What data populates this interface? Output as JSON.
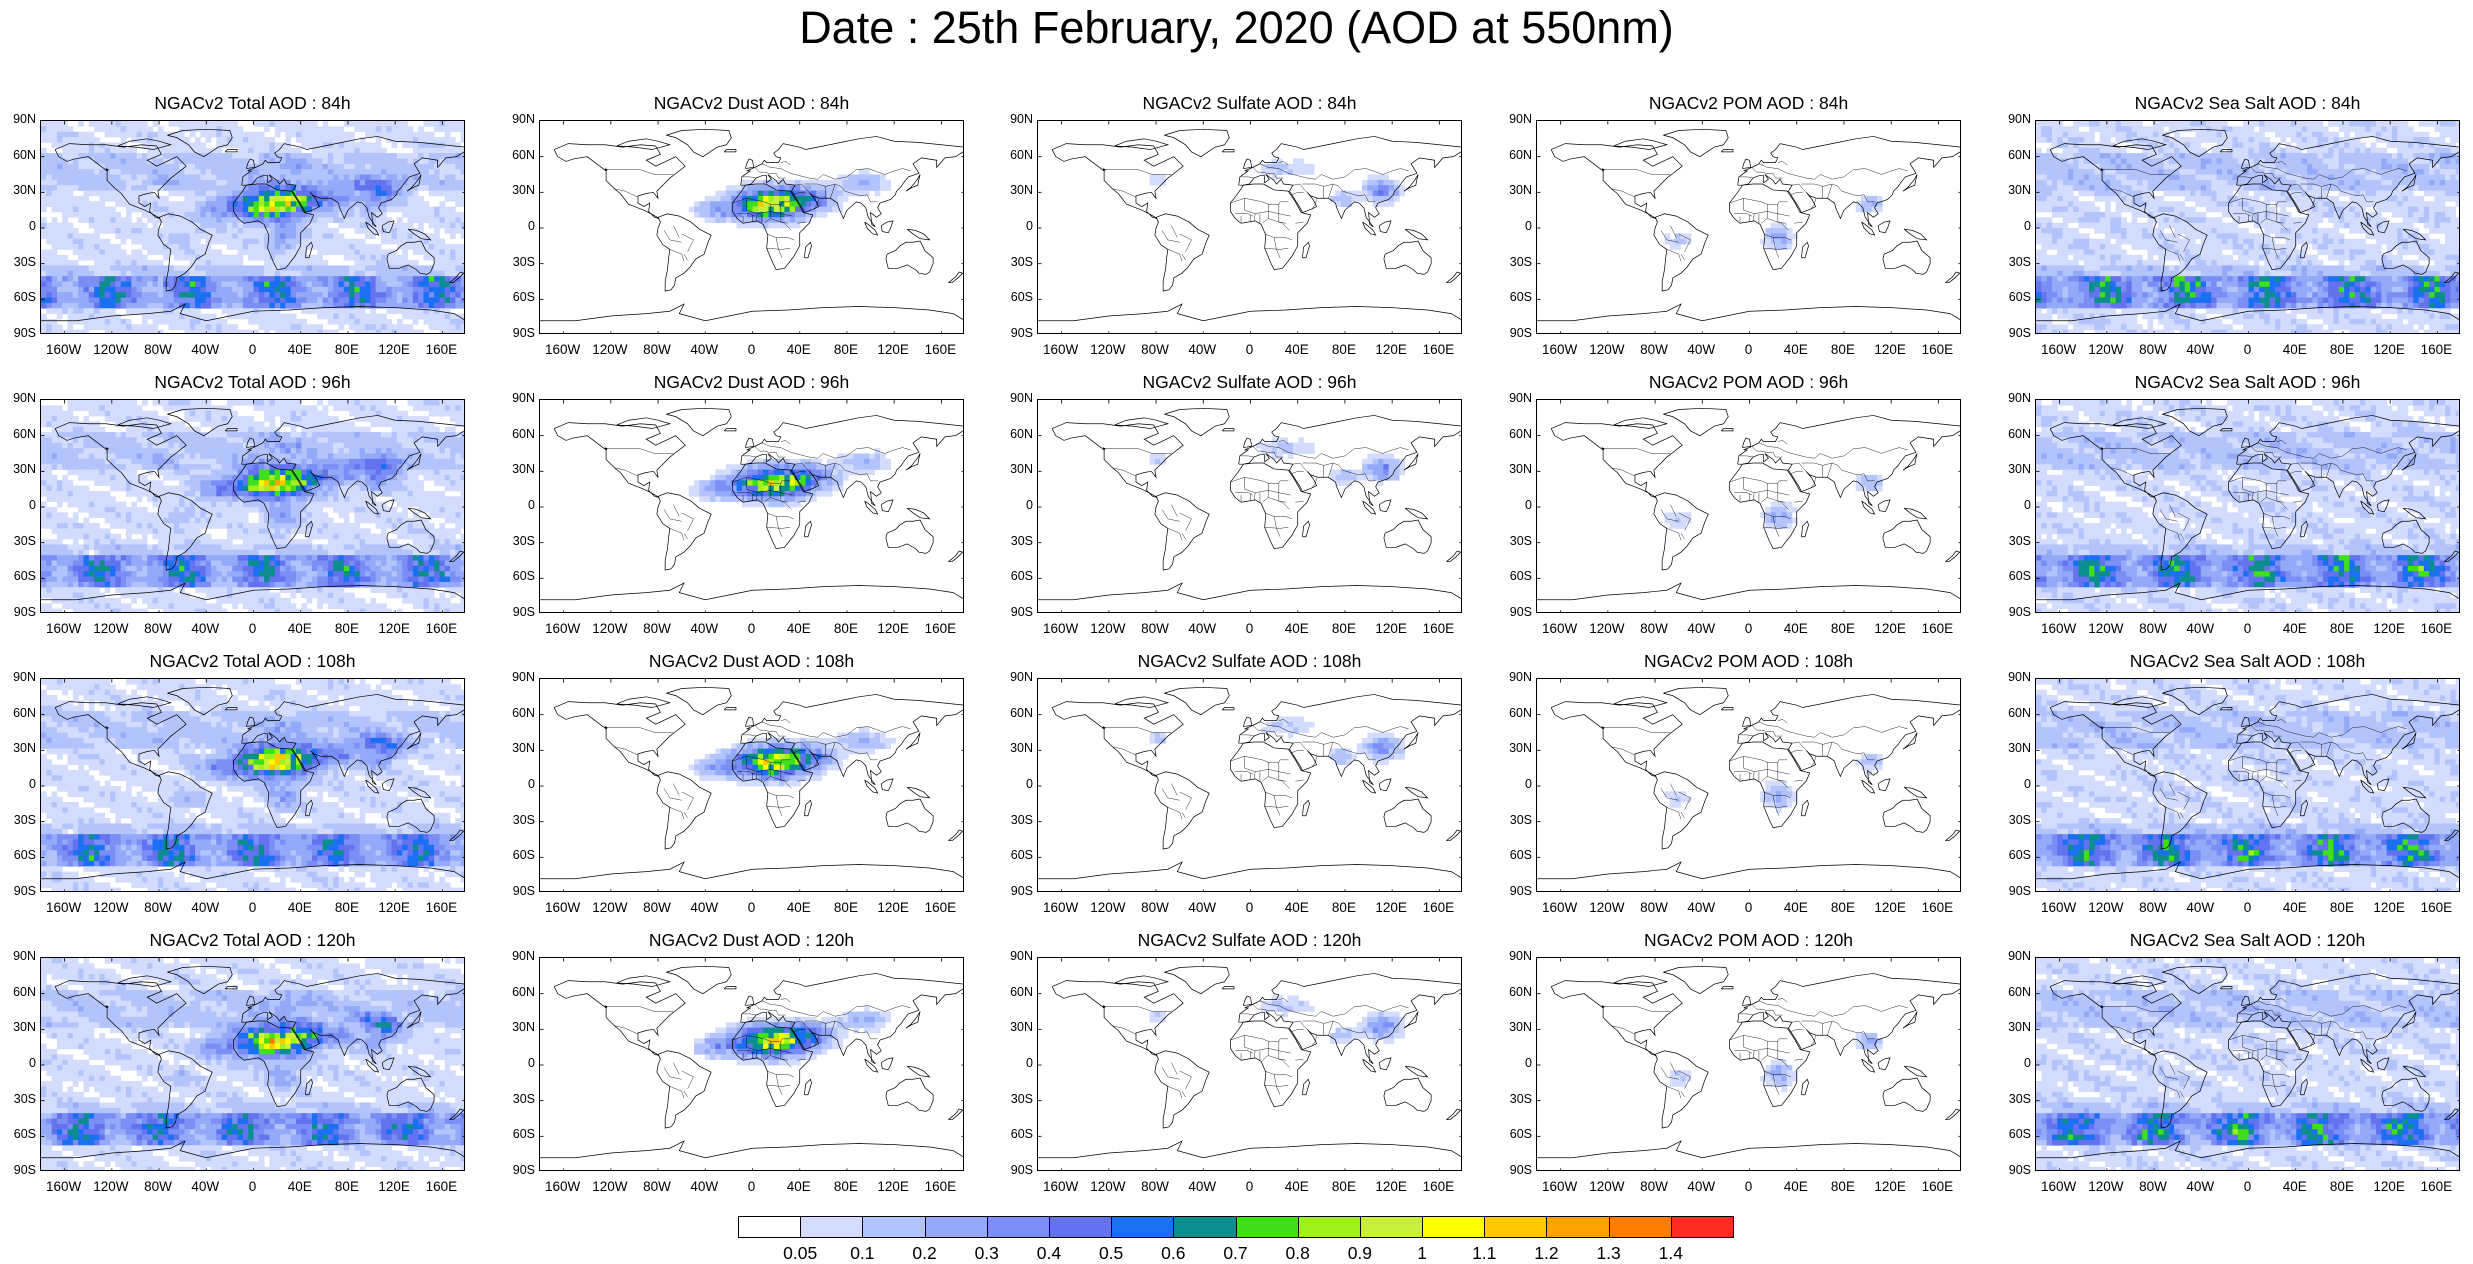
{
  "title": "Date : 25th February, 2020 (AOD at 550nm)",
  "species": [
    {
      "key": "total",
      "label": "Total"
    },
    {
      "key": "dust",
      "label": "Dust"
    },
    {
      "key": "sulfate",
      "label": "Sulfate"
    },
    {
      "key": "pom",
      "label": "POM"
    },
    {
      "key": "seasalt",
      "label": "Sea Salt"
    }
  ],
  "panels": [
    [
      "NGACv2 Total AOD : 84h",
      "NGACv2 Dust AOD : 84h",
      "NGACv2 Sulfate AOD : 84h",
      "NGACv2 POM AOD : 84h",
      "NGACv2 Sea Salt AOD : 84h"
    ],
    [
      "NGACv2 Total AOD : 96h",
      "NGACv2 Dust AOD : 96h",
      "NGACv2 Sulfate AOD : 96h",
      "NGACv2 POM AOD : 96h",
      "NGACv2 Sea Salt AOD : 96h"
    ],
    [
      "NGACv2 Total AOD : 108h",
      "NGACv2 Dust AOD : 108h",
      "NGACv2 Sulfate AOD : 108h",
      "NGACv2 POM AOD : 108h",
      "NGACv2 Sea Salt AOD : 108h"
    ],
    [
      "NGACv2 Total AOD : 120h",
      "NGACv2 Dust AOD : 120h",
      "NGACv2 Sulfate AOD : 120h",
      "NGACv2 POM AOD : 120h",
      "NGACv2 Sea Salt  AOD : 120h"
    ]
  ],
  "forecast_hours": [
    "84h",
    "96h",
    "108h",
    "120h"
  ],
  "lat_labels": [
    "90N",
    "60N",
    "30N",
    "0",
    "30S",
    "60S",
    "90S"
  ],
  "lon_labels": [
    "160W",
    "120W",
    "80W",
    "40W",
    "0",
    "40E",
    "80E",
    "120E",
    "160E"
  ],
  "colorbar": {
    "levels": [
      "0.05",
      "0.1",
      "0.2",
      "0.3",
      "0.4",
      "0.5",
      "0.6",
      "0.7",
      "0.8",
      "0.9",
      "1",
      "1.1",
      "1.2",
      "1.3",
      "1.4"
    ],
    "colors": [
      "#ffffff",
      "#d3dcfd",
      "#b3c3fb",
      "#94a9f8",
      "#7a8ef5",
      "#6372ef",
      "#1b6ff2",
      "#0c8e8e",
      "#3fe01a",
      "#a0f01d",
      "#c8f03a",
      "#ffff00",
      "#ffc800",
      "#ffa200",
      "#ff7d00",
      "#ff2b1e"
    ]
  }
}
